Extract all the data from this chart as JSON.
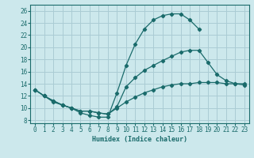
{
  "xlabel": "Humidex (Indice chaleur)",
  "bg_color": "#cce8ec",
  "grid_color": "#aaccd4",
  "line_color": "#1a6b6b",
  "xlim": [
    -0.5,
    23.5
  ],
  "ylim": [
    7.5,
    27.0
  ],
  "xticks": [
    0,
    1,
    2,
    3,
    4,
    5,
    6,
    7,
    8,
    9,
    10,
    11,
    12,
    13,
    14,
    15,
    16,
    17,
    18,
    19,
    20,
    21,
    22,
    23
  ],
  "yticks": [
    8,
    10,
    12,
    14,
    16,
    18,
    20,
    22,
    24,
    26
  ],
  "curve1_x": [
    0,
    1,
    2,
    3,
    4,
    5,
    6,
    7,
    8,
    9,
    10,
    11,
    12,
    13,
    14,
    15,
    16,
    17,
    18
  ],
  "curve1_y": [
    13,
    12,
    11,
    10.5,
    10,
    9.2,
    8.8,
    8.5,
    8.5,
    12.5,
    17,
    20.5,
    23,
    24.5,
    25.2,
    25.5,
    25.5,
    24.5,
    23.0
  ],
  "curve2_x": [
    0,
    1,
    2,
    3,
    4,
    5,
    6,
    7,
    8,
    9,
    10,
    11,
    12,
    13,
    14,
    15,
    16,
    17,
    18,
    19,
    20,
    21,
    22,
    23
  ],
  "curve2_y": [
    13,
    12,
    11.2,
    10.5,
    10,
    9.5,
    9.5,
    9.2,
    9.0,
    10.2,
    13.5,
    15.0,
    16.2,
    17.0,
    17.8,
    18.5,
    19.2,
    19.5,
    19.5,
    17.5,
    15.5,
    14.5,
    14.0,
    13.8
  ],
  "curve3_x": [
    0,
    1,
    2,
    3,
    4,
    5,
    6,
    7,
    8,
    9,
    10,
    11,
    12,
    13,
    14,
    15,
    16,
    17,
    18,
    19,
    20,
    21,
    22,
    23
  ],
  "curve3_y": [
    13,
    12,
    11.2,
    10.5,
    10,
    9.5,
    9.5,
    9.2,
    9.0,
    10.0,
    11.0,
    11.8,
    12.5,
    13.0,
    13.5,
    13.8,
    14.0,
    14.0,
    14.2,
    14.2,
    14.2,
    14.0,
    14.0,
    14.0
  ]
}
